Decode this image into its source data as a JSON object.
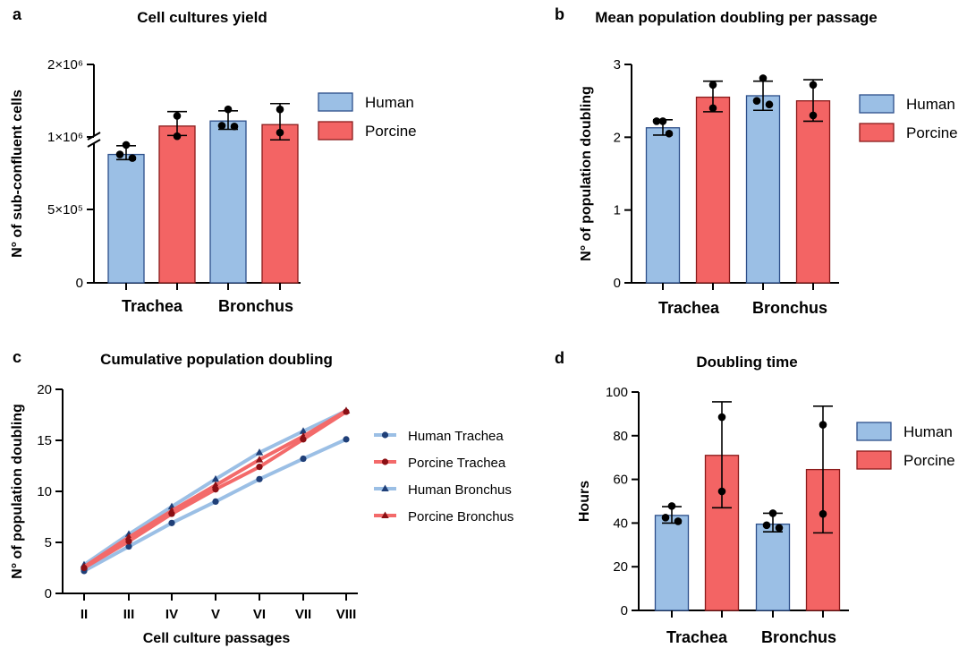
{
  "colors": {
    "human": "#9bbfe5",
    "human_stroke": "#2d4f8a",
    "porcine": "#f36464",
    "porcine_stroke": "#8a1b1b",
    "human_line": "#9bbfe5",
    "porcine_line": "#f36a6a",
    "human_marker": "#1f3f78",
    "porcine_marker": "#8b0f14",
    "axis": "#000000"
  },
  "chart_data": [
    {
      "panel": "a",
      "type": "bar",
      "title": "Cell cultures yield",
      "ylabel": "N° of sub-confluent cells",
      "xlabel": "",
      "ylim": [
        0,
        2000000
      ],
      "yticks": [
        0,
        500000,
        1000000,
        2000000
      ],
      "ytick_labels": [
        "0",
        "5×10⁵",
        "1×10⁶",
        "2×10⁶"
      ],
      "y_axis_break": true,
      "groups": [
        "Trachea",
        "Bronchus"
      ],
      "legend": [
        "Human",
        "Porcine"
      ],
      "legend_position": "right",
      "bars": [
        {
          "group": "Trachea",
          "series": "Human",
          "mean": 880000,
          "sd_low": 845000,
          "sd_high": 940000,
          "points": [
            945000,
            880000,
            855000
          ]
        },
        {
          "group": "Trachea",
          "series": "Porcine",
          "mean": 1150000,
          "sd_low": 1020000,
          "sd_high": 1350000,
          "points": [
            1290000,
            1010000
          ]
        },
        {
          "group": "Bronchus",
          "series": "Human",
          "mean": 1220000,
          "sd_low": 1105000,
          "sd_high": 1360000,
          "points": [
            1380000,
            1155000,
            1145000
          ]
        },
        {
          "group": "Bronchus",
          "series": "Porcine",
          "mean": 1170000,
          "sd_low": 980000,
          "sd_high": 1460000,
          "points": [
            1380000,
            1060000
          ]
        }
      ]
    },
    {
      "panel": "b",
      "type": "bar",
      "title": "Mean population doubling per passage",
      "ylabel": "N° of population doubling",
      "xlabel": "",
      "ylim": [
        0,
        3
      ],
      "yticks": [
        0,
        1,
        2,
        3
      ],
      "ytick_labels": [
        "0",
        "1",
        "2",
        "3"
      ],
      "groups": [
        "Trachea",
        "Bronchus"
      ],
      "legend": [
        "Human",
        "Porcine"
      ],
      "legend_position": "right",
      "bars": [
        {
          "group": "Trachea",
          "series": "Human",
          "mean": 2.13,
          "sd_low": 2.03,
          "sd_high": 2.24,
          "points": [
            2.22,
            2.22,
            2.05
          ]
        },
        {
          "group": "Trachea",
          "series": "Porcine",
          "mean": 2.55,
          "sd_low": 2.35,
          "sd_high": 2.77,
          "points": [
            2.72,
            2.4
          ]
        },
        {
          "group": "Bronchus",
          "series": "Human",
          "mean": 2.57,
          "sd_low": 2.37,
          "sd_high": 2.77,
          "points": [
            2.81,
            2.5,
            2.45
          ]
        },
        {
          "group": "Bronchus",
          "series": "Porcine",
          "mean": 2.5,
          "sd_low": 2.22,
          "sd_high": 2.79,
          "points": [
            2.72,
            2.3
          ]
        }
      ]
    },
    {
      "panel": "c",
      "type": "line",
      "title": "Cumulative population doubling",
      "ylabel": "N° of population doubling",
      "xlabel": "Cell culture passages",
      "categories": [
        "II",
        "III",
        "IV",
        "V",
        "VI",
        "VII",
        "VIII"
      ],
      "ylim": [
        0,
        20
      ],
      "yticks": [
        0,
        5,
        10,
        15,
        20
      ],
      "ytick_labels": [
        "0",
        "5",
        "10",
        "15",
        "20"
      ],
      "legend_position": "right",
      "series": [
        {
          "name": "Human Trachea",
          "marker": "circle",
          "color_key": "human",
          "values": [
            2.2,
            4.6,
            6.9,
            9.0,
            11.2,
            13.2,
            15.1
          ]
        },
        {
          "name": "Porcine Trachea",
          "marker": "circle",
          "color_key": "porcine",
          "values": [
            2.5,
            5.1,
            7.8,
            10.2,
            12.4,
            15.1,
            17.8
          ]
        },
        {
          "name": "Human Bronchus",
          "marker": "triangle",
          "color_key": "human",
          "values": [
            2.8,
            5.8,
            8.5,
            11.2,
            13.8,
            15.9,
            17.9
          ]
        },
        {
          "name": "Porcine Bronchus",
          "marker": "triangle",
          "color_key": "porcine",
          "values": [
            2.6,
            5.5,
            8.1,
            10.6,
            13.1,
            15.4,
            17.9
          ]
        }
      ]
    },
    {
      "panel": "d",
      "type": "bar",
      "title": "Doubling time",
      "ylabel": "Hours",
      "xlabel": "",
      "ylim": [
        0,
        100
      ],
      "yticks": [
        0,
        20,
        40,
        60,
        80,
        100
      ],
      "ytick_labels": [
        "0",
        "20",
        "40",
        "60",
        "80",
        "100"
      ],
      "groups": [
        "Trachea",
        "Bronchus"
      ],
      "legend": [
        "Human",
        "Porcine"
      ],
      "legend_position": "right",
      "bars": [
        {
          "group": "Trachea",
          "series": "Human",
          "mean": 43.5,
          "sd_low": 40.0,
          "sd_high": 47.5,
          "points": [
            47.8,
            42.5,
            40.8
          ]
        },
        {
          "group": "Trachea",
          "series": "Porcine",
          "mean": 71.0,
          "sd_low": 47.0,
          "sd_high": 95.5,
          "points": [
            88.5,
            54.5
          ]
        },
        {
          "group": "Bronchus",
          "series": "Human",
          "mean": 39.5,
          "sd_low": 36.0,
          "sd_high": 44.5,
          "points": [
            44.5,
            39.0,
            37.8
          ]
        },
        {
          "group": "Bronchus",
          "series": "Porcine",
          "mean": 64.5,
          "sd_low": 35.5,
          "sd_high": 93.5,
          "points": [
            85.0,
            44.2
          ]
        }
      ]
    }
  ]
}
